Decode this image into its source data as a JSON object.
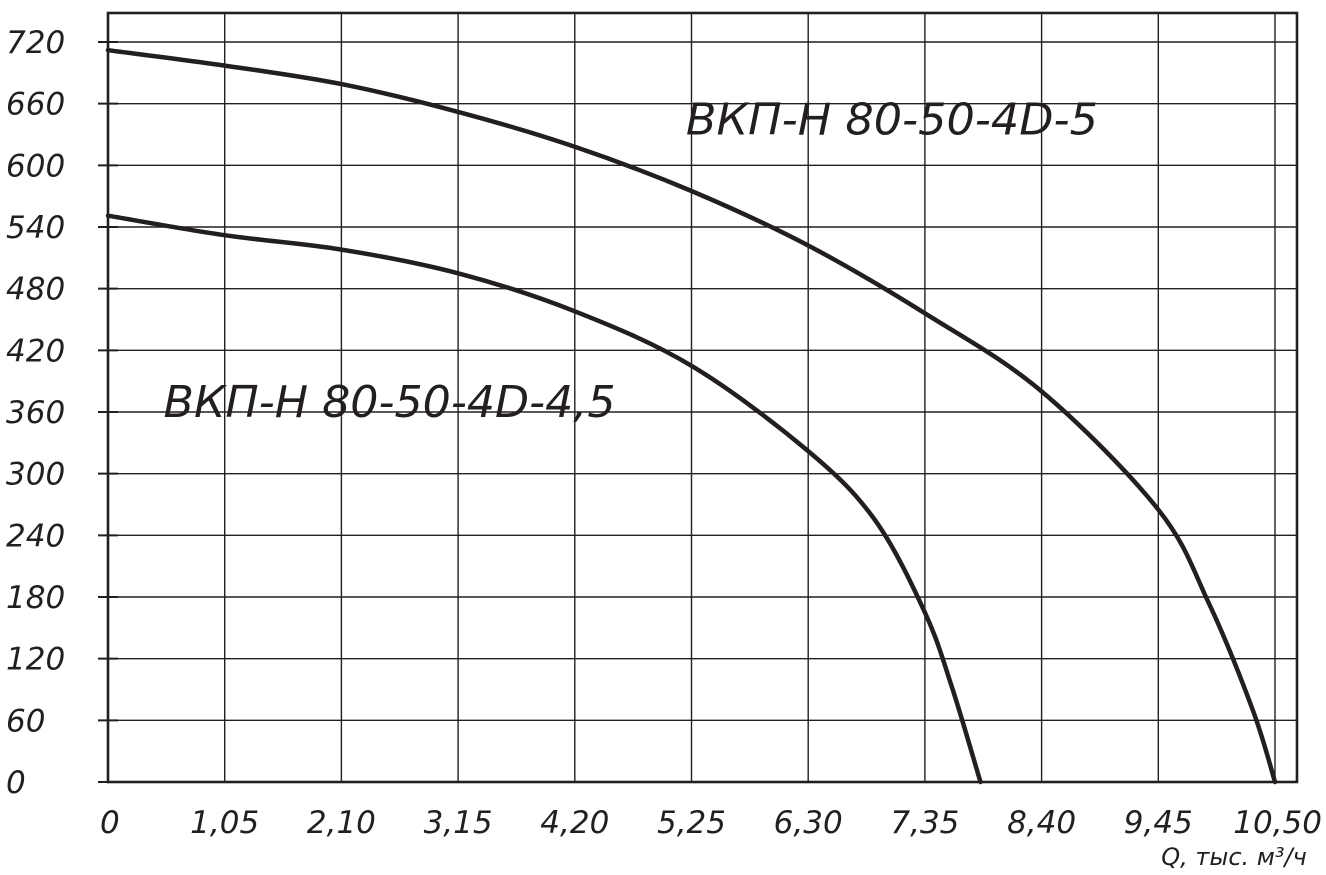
{
  "chart_data": {
    "type": "line",
    "title": "",
    "xlabel": "Q, тыс. м³/ч",
    "ylabel": "",
    "xlim": [
      0,
      10.5
    ],
    "ylim": [
      0,
      720
    ],
    "grid": true,
    "x_ticks": [
      "0",
      "1,05",
      "2,10",
      "3,15",
      "4,20",
      "5,25",
      "6,30",
      "7,35",
      "8,40",
      "9,45",
      "10,50"
    ],
    "x_tick_values": [
      0,
      1.05,
      2.1,
      3.15,
      4.2,
      5.25,
      6.3,
      7.35,
      8.4,
      9.45,
      10.5
    ],
    "y_ticks": [
      "0",
      "60",
      "120",
      "180",
      "240",
      "300",
      "360",
      "420",
      "480",
      "540",
      "600",
      "660",
      "720"
    ],
    "y_tick_values": [
      0,
      60,
      120,
      180,
      240,
      300,
      360,
      420,
      480,
      540,
      600,
      660,
      720
    ],
    "series": [
      {
        "name": "ВКП-Н 80-50-4D-5",
        "label_anchor": [
          5.2,
          630
        ],
        "points": [
          [
            0,
            712
          ],
          [
            1.05,
            697
          ],
          [
            2.1,
            679
          ],
          [
            3.15,
            652
          ],
          [
            4.2,
            618
          ],
          [
            5.25,
            575
          ],
          [
            6.3,
            522
          ],
          [
            7.35,
            456
          ],
          [
            8.4,
            380
          ],
          [
            9.45,
            265
          ],
          [
            9.9,
            175
          ],
          [
            10.3,
            70
          ],
          [
            10.5,
            0
          ]
        ]
      },
      {
        "name": "ВКП-Н 80-50-4D-4,5",
        "label_anchor": [
          0.5,
          355
        ],
        "points": [
          [
            0,
            551
          ],
          [
            1.05,
            532
          ],
          [
            2.1,
            518
          ],
          [
            3.15,
            495
          ],
          [
            4.2,
            458
          ],
          [
            5.25,
            405
          ],
          [
            6.3,
            322
          ],
          [
            6.9,
            255
          ],
          [
            7.35,
            165
          ],
          [
            7.6,
            90
          ],
          [
            7.85,
            0
          ]
        ]
      }
    ]
  }
}
